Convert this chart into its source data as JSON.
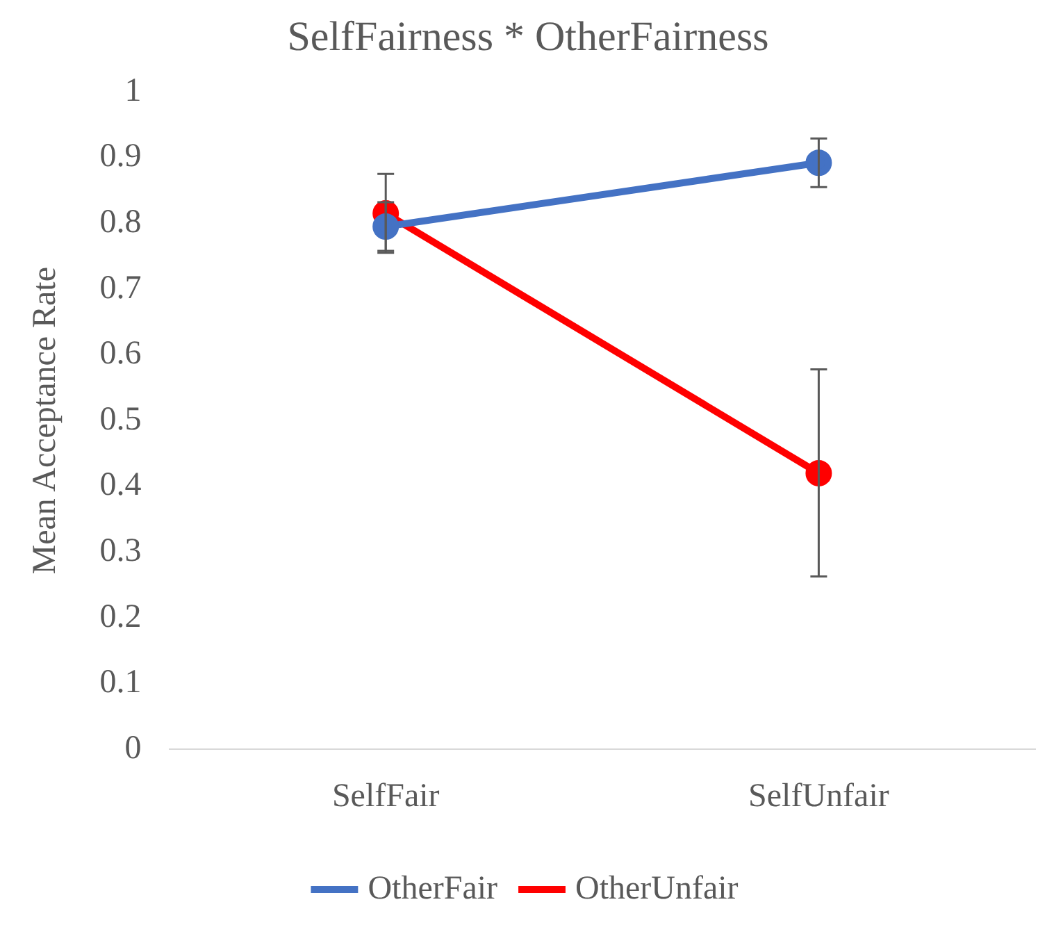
{
  "chart_data": {
    "type": "line",
    "title": "SelfFairness * OtherFairness",
    "ylabel": "Mean Acceptance Rate",
    "categories": [
      "SelfFair",
      "SelfUnfair"
    ],
    "series": [
      {
        "name": "OtherFair",
        "color": "#4472c4",
        "values": [
          0.795,
          0.892
        ],
        "errors": [
          [
            0.758,
            0.832
          ],
          [
            0.855,
            0.929
          ]
        ]
      },
      {
        "name": "OtherUnfair",
        "color": "#ff0000",
        "values": [
          0.815,
          0.42
        ],
        "errors": [
          [
            0.755,
            0.875
          ],
          [
            0.263,
            0.578
          ]
        ]
      }
    ],
    "ylim": [
      0,
      1
    ],
    "yticks": [
      0,
      0.1,
      0.2,
      0.3,
      0.4,
      0.5,
      0.6,
      0.7,
      0.8,
      0.9,
      1
    ],
    "grid": false,
    "legend": "bottom",
    "marker": "circle",
    "line_style": "solid"
  }
}
